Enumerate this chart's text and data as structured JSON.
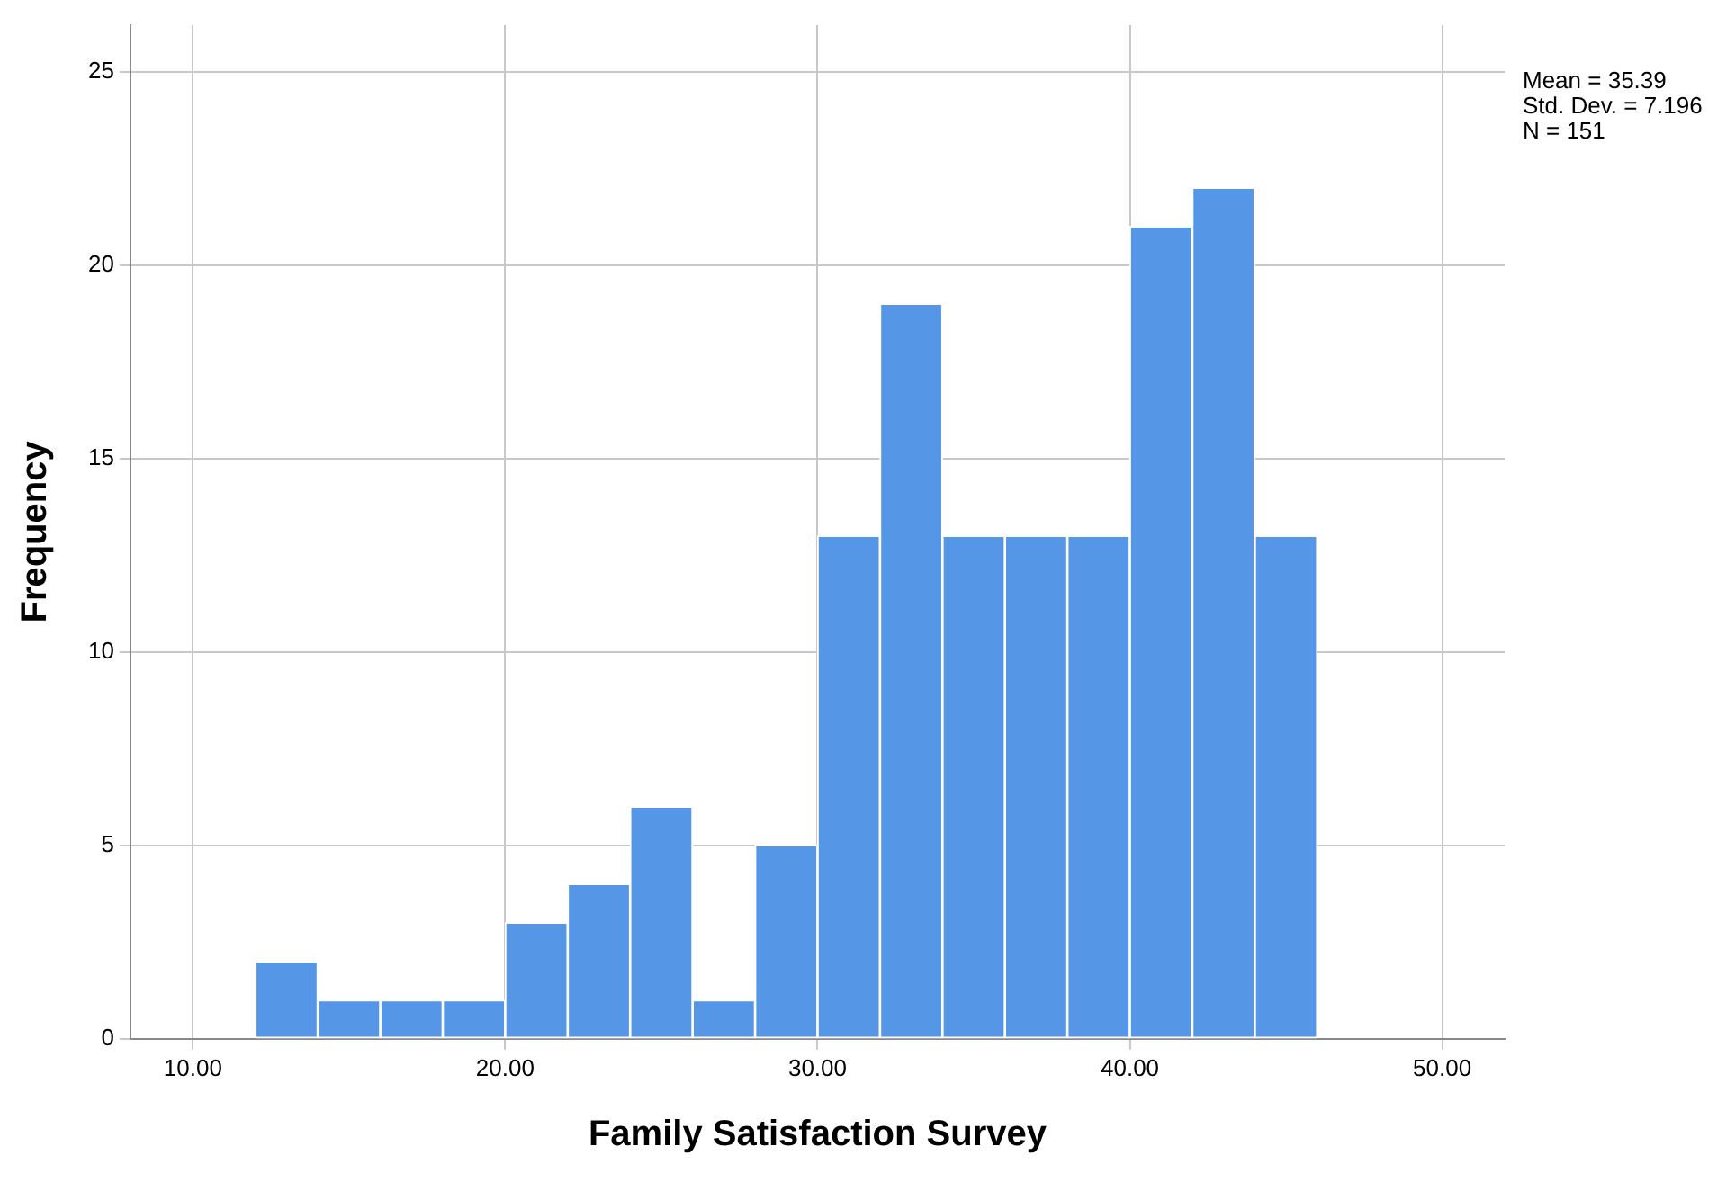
{
  "chart_data": {
    "type": "histogram",
    "xlabel": "Family Satisfaction Survey",
    "ylabel": "Frequency",
    "bins": [
      12,
      14,
      16,
      18,
      20,
      22,
      24,
      26,
      28,
      30,
      32,
      34,
      36,
      38,
      40,
      42,
      44,
      46
    ],
    "values": [
      2,
      1,
      1,
      1,
      3,
      4,
      6,
      1,
      5,
      13,
      19,
      13,
      13,
      13,
      21,
      22,
      13
    ],
    "color": "#5596e6",
    "xlim": [
      8,
      52
    ],
    "xticks": [
      {
        "value": 10,
        "label": "10.00"
      },
      {
        "value": 20,
        "label": "20.00"
      },
      {
        "value": 30,
        "label": "30.00"
      },
      {
        "value": 40,
        "label": "40.00"
      },
      {
        "value": 50,
        "label": "50.00"
      }
    ],
    "ylim": [
      0,
      26.2
    ],
    "yticks": [
      0,
      5,
      10,
      15,
      20,
      25
    ],
    "grid": true,
    "legend": false,
    "annotations": [
      "Mean = 35.39\nStd. Dev. = 7.196\nN = 151"
    ]
  }
}
